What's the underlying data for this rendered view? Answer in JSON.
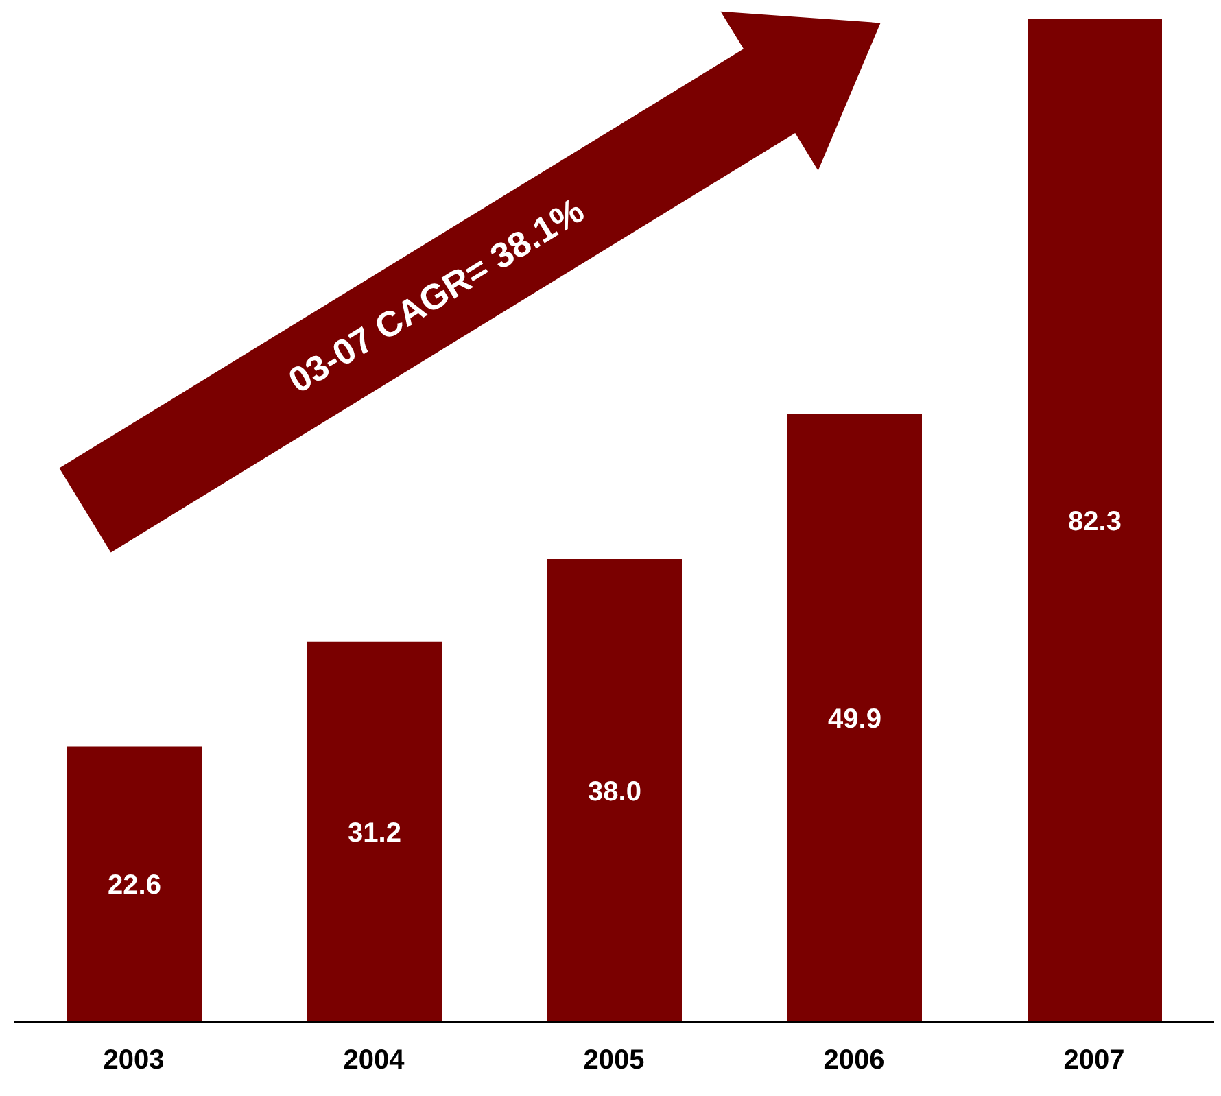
{
  "chart_data": {
    "type": "bar",
    "categories": [
      "2003",
      "2004",
      "2005",
      "2006",
      "2007"
    ],
    "values": [
      22.6,
      31.2,
      38.0,
      49.9,
      82.3
    ],
    "value_labels": [
      "22.6",
      "31.2",
      "38.0",
      "49.9",
      "82.3"
    ],
    "color": "#7a0000",
    "annotations": [
      "03-07 CAGR= 38.1%"
    ]
  }
}
